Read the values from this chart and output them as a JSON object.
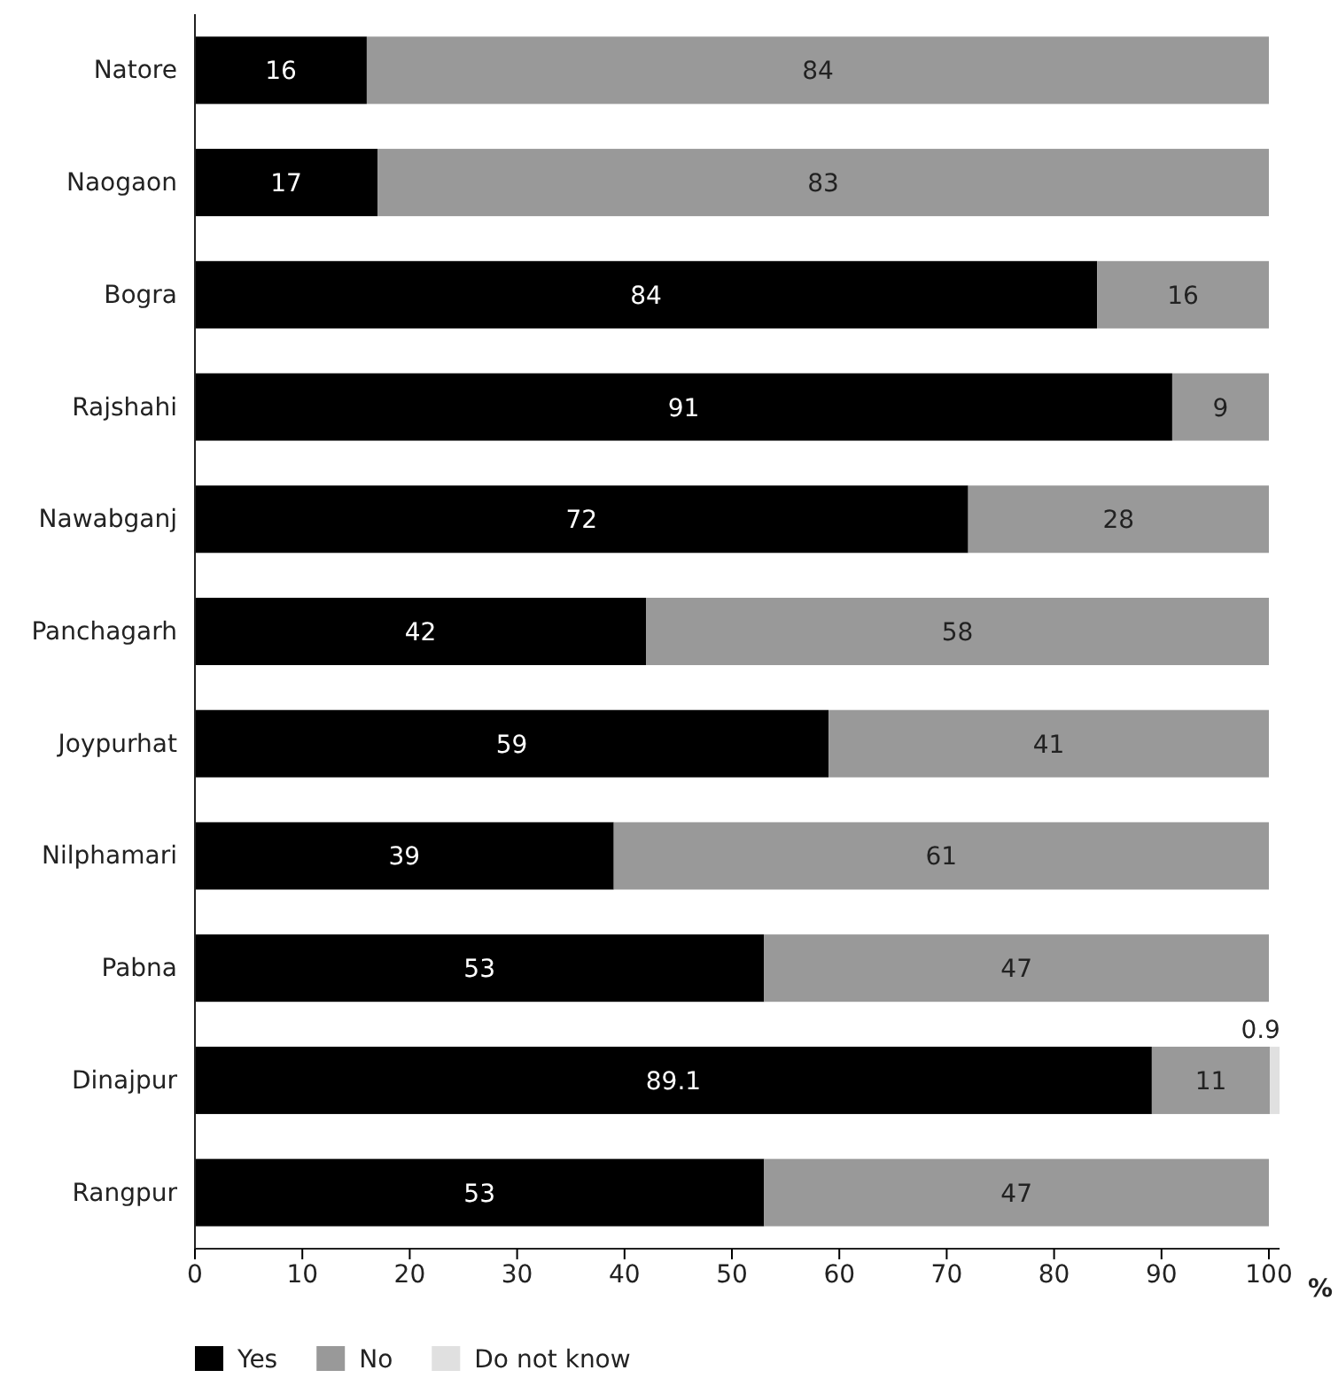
{
  "chart_data": {
    "type": "bar",
    "orientation": "horizontal",
    "stacked": true,
    "xlabel": "%",
    "categories": [
      "Natore",
      "Naogaon",
      "Bogra",
      "Rajshahi",
      "Nawabganj",
      "Panchagarh",
      "Joypurhat",
      "Nilphamari",
      "Pabna",
      "Dinajpur",
      "Rangpur"
    ],
    "series": [
      {
        "name": "Yes",
        "color": "#000000",
        "values": [
          16,
          17,
          84,
          91,
          72,
          42,
          59,
          39,
          53,
          89.1,
          53
        ]
      },
      {
        "name": "No",
        "color": "#999999",
        "values": [
          84,
          83,
          16,
          9,
          28,
          58,
          41,
          61,
          47,
          11,
          47
        ]
      },
      {
        "name": "Do not know",
        "color": "#e0e0e0",
        "values": [
          null,
          null,
          null,
          null,
          null,
          null,
          null,
          null,
          null,
          0.9,
          null
        ]
      }
    ],
    "xlim": [
      0,
      101
    ],
    "xticks": [
      0,
      10,
      20,
      30,
      40,
      50,
      60,
      70,
      80,
      90,
      100
    ],
    "data_labels": true,
    "grid": false,
    "legend": "bottom left"
  }
}
